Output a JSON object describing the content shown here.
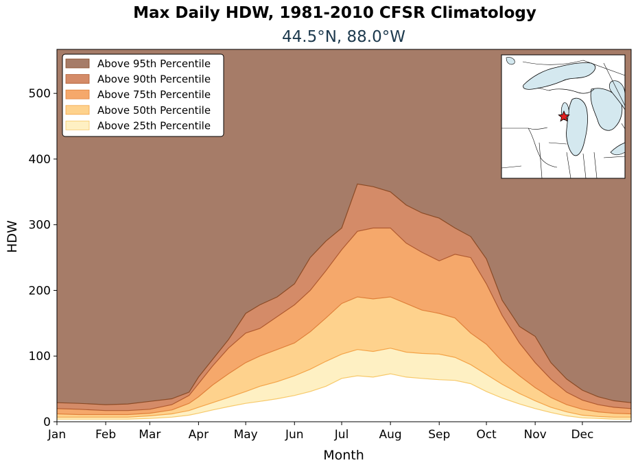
{
  "chart_data": {
    "type": "area",
    "title": "Max Daily HDW, 1981-2010 CFSR Climatology",
    "subtitle": "44.5°N, 88.0°W",
    "xlabel": "Month",
    "ylabel": "HDW",
    "xlim": [
      1,
      366
    ],
    "ylim": [
      0,
      567
    ],
    "yticks": [
      0,
      100,
      200,
      300,
      400,
      500
    ],
    "month_ticks": [
      {
        "label": "Jan",
        "day": 1
      },
      {
        "label": "Feb",
        "day": 32
      },
      {
        "label": "Mar",
        "day": 60
      },
      {
        "label": "Apr",
        "day": 91
      },
      {
        "label": "May",
        "day": 121
      },
      {
        "label": "Jun",
        "day": 152
      },
      {
        "label": "Jul",
        "day": 182
      },
      {
        "label": "Aug",
        "day": 213
      },
      {
        "label": "Sep",
        "day": 244
      },
      {
        "label": "Oct",
        "day": 274
      },
      {
        "label": "Nov",
        "day": 305
      },
      {
        "label": "Dec",
        "day": 335
      }
    ],
    "grid": false,
    "legend_position": "top-left",
    "x": [
      1,
      15,
      32,
      46,
      60,
      74,
      85,
      91,
      100,
      110,
      121,
      130,
      141,
      152,
      162,
      172,
      182,
      192,
      202,
      213,
      223,
      233,
      244,
      254,
      264,
      274,
      284,
      295,
      305,
      315,
      325,
      335,
      345,
      355,
      366
    ],
    "series": [
      {
        "name": "Above 25th Percentile",
        "color": "#fef0c3",
        "edge": "#f7c96a",
        "values": [
          4,
          4,
          4,
          4,
          5,
          7,
          10,
          13,
          18,
          23,
          28,
          31,
          35,
          40,
          46,
          54,
          66,
          70,
          68,
          73,
          68,
          66,
          64,
          63,
          58,
          46,
          36,
          27,
          20,
          14,
          9,
          6,
          5,
          4,
          4
        ]
      },
      {
        "name": "Above 50th Percentile",
        "color": "#fed28d",
        "edge": "#f4a347",
        "values": [
          7,
          7,
          7,
          7,
          9,
          12,
          17,
          22,
          29,
          37,
          46,
          54,
          61,
          70,
          80,
          92,
          103,
          110,
          107,
          112,
          106,
          104,
          103,
          98,
          87,
          72,
          57,
          43,
          32,
          22,
          15,
          10,
          8,
          7,
          7
        ]
      },
      {
        "name": "Above 75th Percentile",
        "color": "#f5a86b",
        "edge": "#e0803a",
        "values": [
          12,
          11,
          11,
          11,
          13,
          18,
          28,
          38,
          56,
          73,
          90,
          100,
          110,
          120,
          137,
          158,
          180,
          190,
          187,
          190,
          180,
          170,
          165,
          158,
          135,
          118,
          92,
          70,
          52,
          37,
          26,
          19,
          15,
          13,
          12
        ]
      },
      {
        "name": "Above 90th Percentile",
        "color": "#d48b68",
        "edge": "#b05a2f",
        "values": [
          20,
          19,
          17,
          17,
          19,
          26,
          40,
          58,
          85,
          112,
          135,
          142,
          160,
          178,
          200,
          230,
          262,
          290,
          295,
          295,
          272,
          258,
          245,
          255,
          250,
          210,
          162,
          120,
          90,
          65,
          45,
          33,
          26,
          22,
          20
        ]
      },
      {
        "name": "Above 95th Percentile",
        "color": "#a67c68",
        "edge": "#8a4a25",
        "values": [
          29,
          28,
          26,
          27,
          31,
          35,
          45,
          68,
          95,
          125,
          165,
          178,
          190,
          210,
          250,
          275,
          295,
          362,
          358,
          350,
          330,
          318,
          310,
          295,
          282,
          248,
          185,
          145,
          130,
          90,
          65,
          48,
          38,
          32,
          29
        ]
      }
    ],
    "top_fill_color": "#a67c68",
    "inset_map": {
      "land_color": "#ffffff",
      "water_color": "#d4e8ef",
      "marker": "red-star"
    }
  }
}
